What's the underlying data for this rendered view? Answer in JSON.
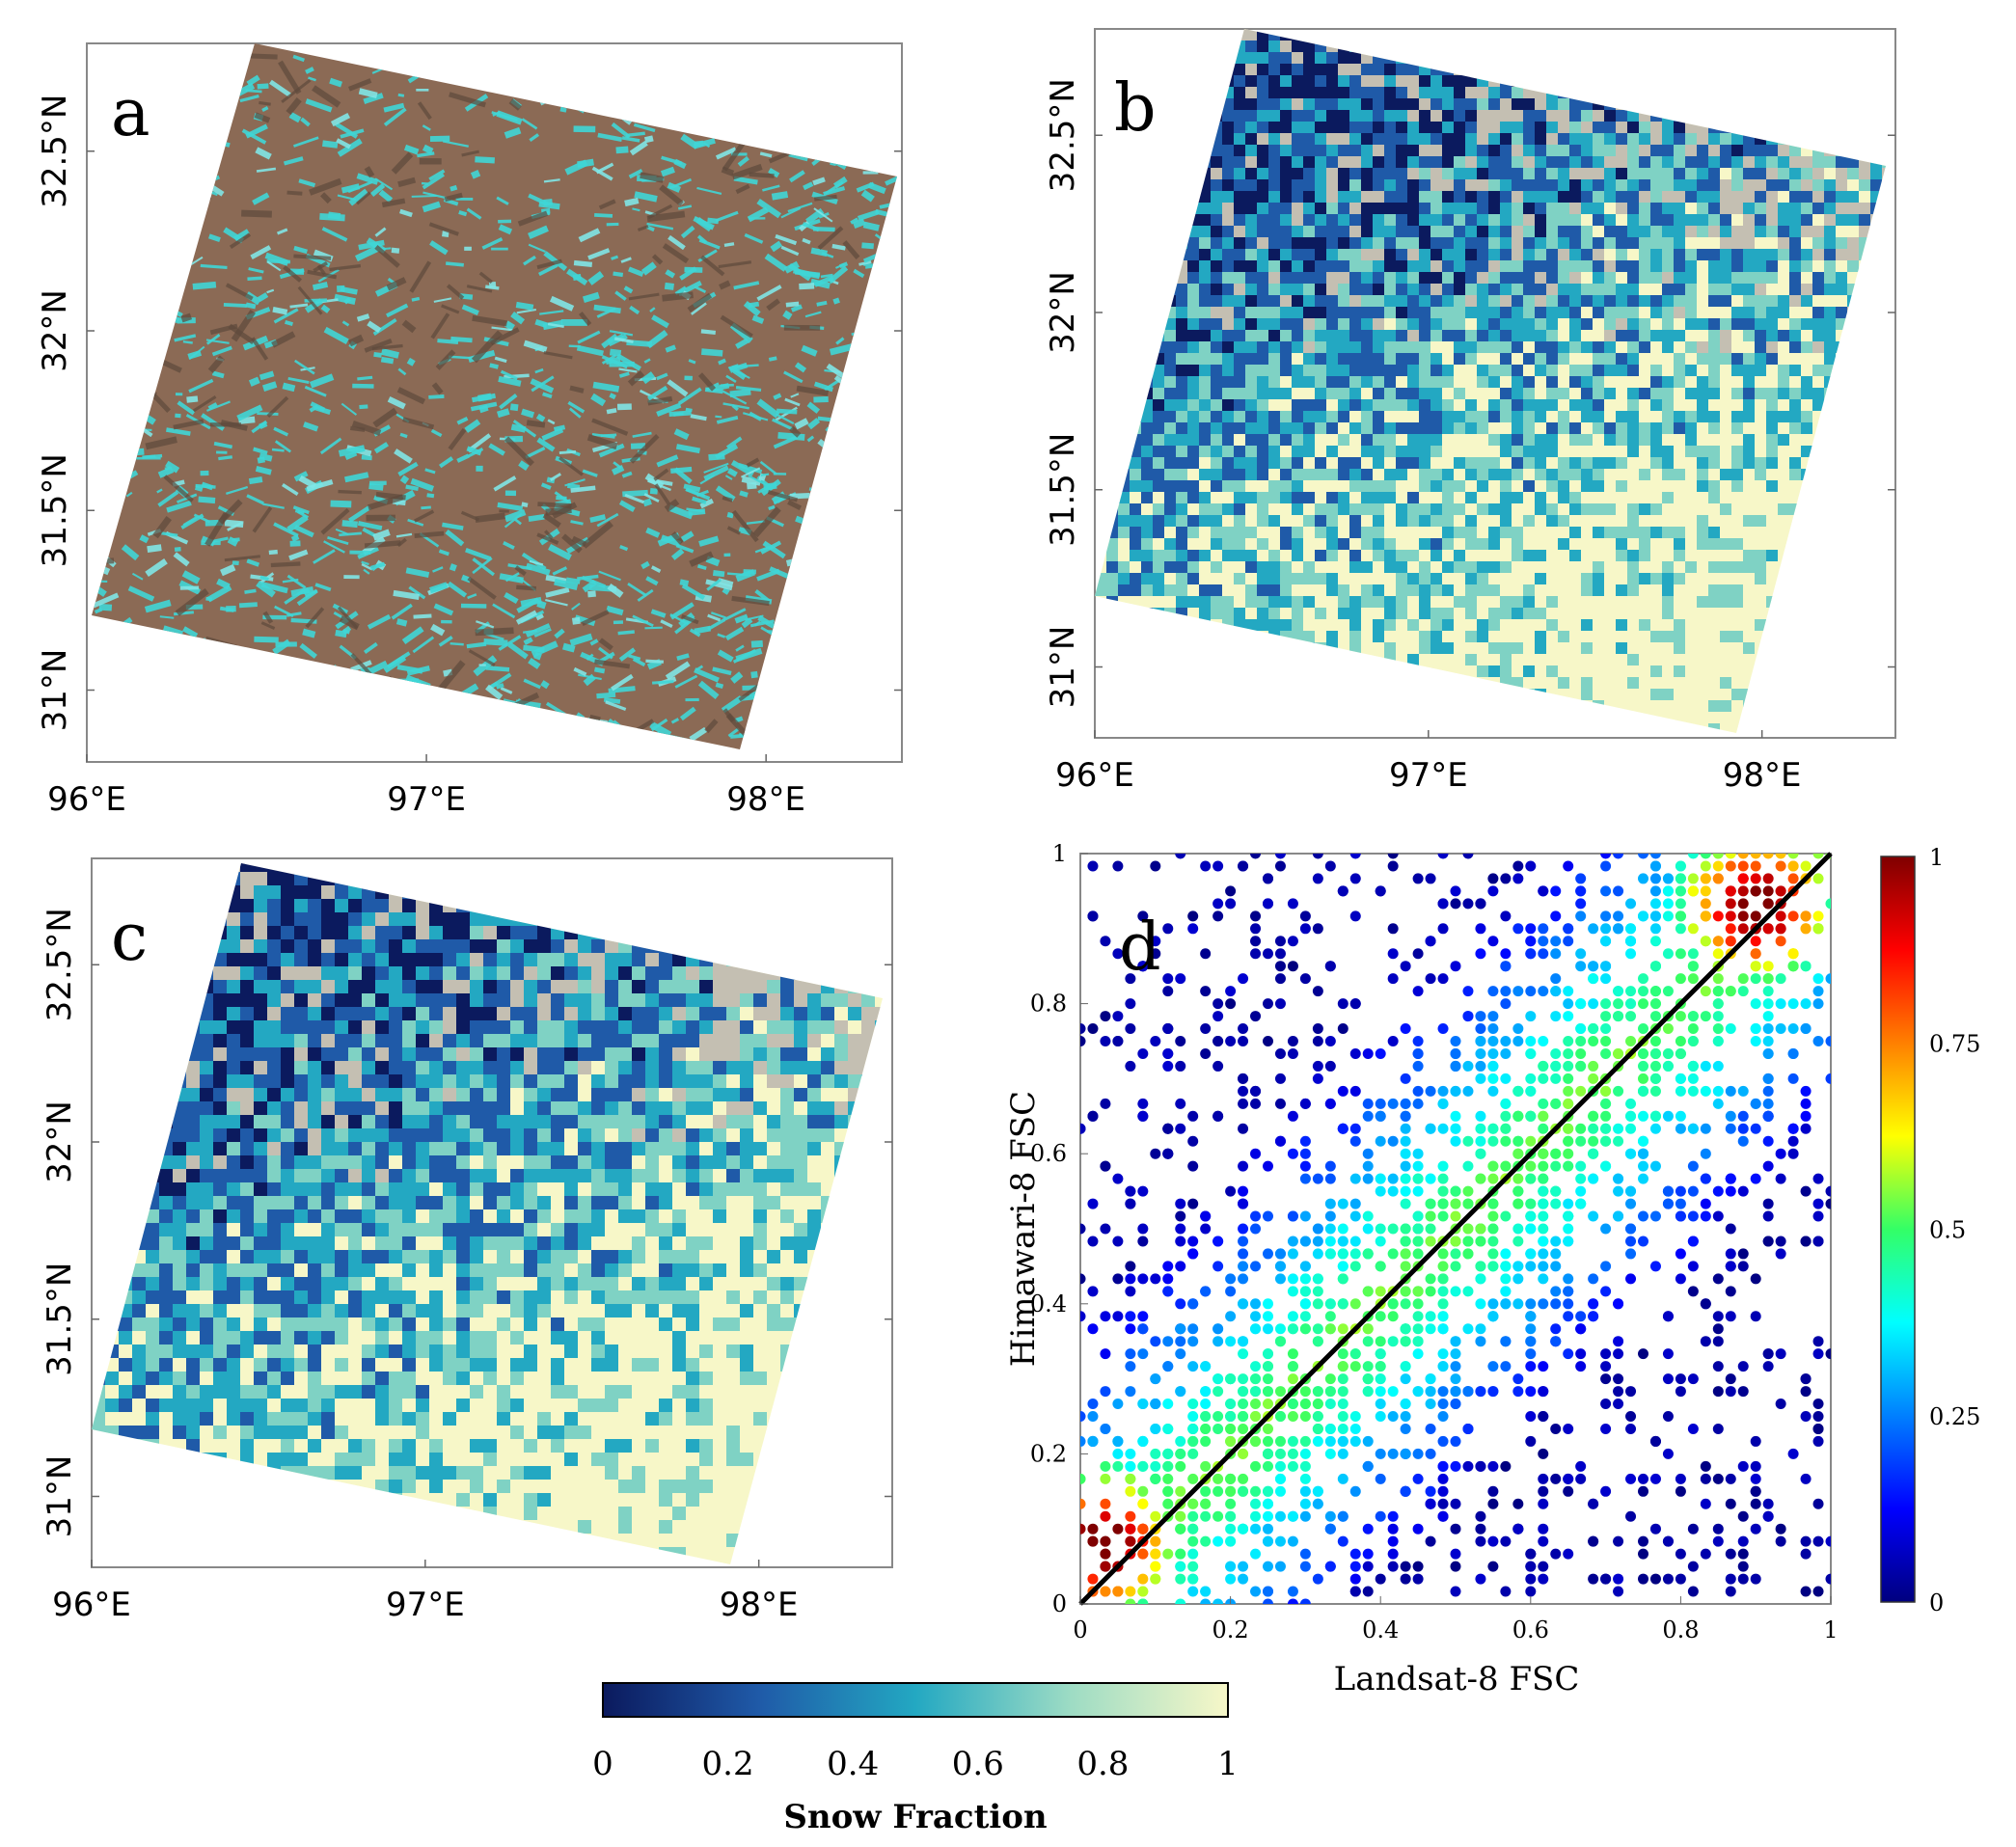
{
  "chart_data": [
    {
      "panel": "a",
      "type": "map",
      "x_ticks": [
        "96°E",
        "97°E",
        "98°E"
      ],
      "y_ticks": [
        "31°N",
        "31.5°N",
        "32°N",
        "32.5°N"
      ],
      "xlim": [
        96,
        98.4
      ],
      "ylim": [
        30.8,
        32.8
      ]
    },
    {
      "panel": "b",
      "type": "heatmap",
      "x_ticks": [
        "96°E",
        "97°E",
        "98°E"
      ],
      "y_ticks": [
        "31°N",
        "31.5°N",
        "32°N",
        "32.5°N"
      ],
      "xlim": [
        96,
        98.4
      ],
      "ylim": [
        30.8,
        32.8
      ],
      "colorbar": "Snow Fraction"
    },
    {
      "panel": "c",
      "type": "heatmap",
      "x_ticks": [
        "96°E",
        "97°E",
        "98°E"
      ],
      "y_ticks": [
        "31°N",
        "31.5°N",
        "32°N",
        "32.5°N"
      ],
      "xlim": [
        96,
        98.4
      ],
      "ylim": [
        30.8,
        32.8
      ],
      "colorbar": "Snow Fraction"
    },
    {
      "panel": "d",
      "type": "scatter",
      "xlabel": "Landsat-8 FSC",
      "ylabel": "Himawari-8 FSC",
      "xlim": [
        0,
        1
      ],
      "ylim": [
        0,
        1
      ],
      "x_ticks": [
        "0",
        "0.2",
        "0.4",
        "0.6",
        "0.8",
        "1"
      ],
      "y_ticks": [
        "0",
        "0.2",
        "0.4",
        "0.6",
        "0.8",
        "1"
      ],
      "reference_line": [
        [
          0,
          0
        ],
        [
          1,
          1
        ]
      ],
      "density_colorbar": {
        "ticks": [
          "0",
          "0.25",
          "0.5",
          "0.75",
          "1"
        ],
        "range": [
          0,
          1
        ]
      },
      "hot_spots": [
        {
          "x": 0.03,
          "y": 0.08,
          "density": 1.0
        },
        {
          "x": 0.9,
          "y": 0.93,
          "density": 1.0
        },
        {
          "x": 0.5,
          "y": 0.5,
          "density": 0.45
        }
      ]
    }
  ],
  "snow_colorbar": {
    "title": "Snow Fraction",
    "ticks": [
      "0",
      "0.2",
      "0.4",
      "0.6",
      "0.8",
      "1"
    ],
    "range": [
      0,
      1
    ],
    "colors": [
      "#0b1a5e",
      "#1f5aa8",
      "#23a8c2",
      "#7fd2c4",
      "#f7f7c8"
    ]
  },
  "colors": {
    "terrain_brown": "#8b6a55",
    "snow_cyan": "#3fd6d6",
    "nodata_gray": "#c4bfb2",
    "ref_line": "#000000"
  }
}
